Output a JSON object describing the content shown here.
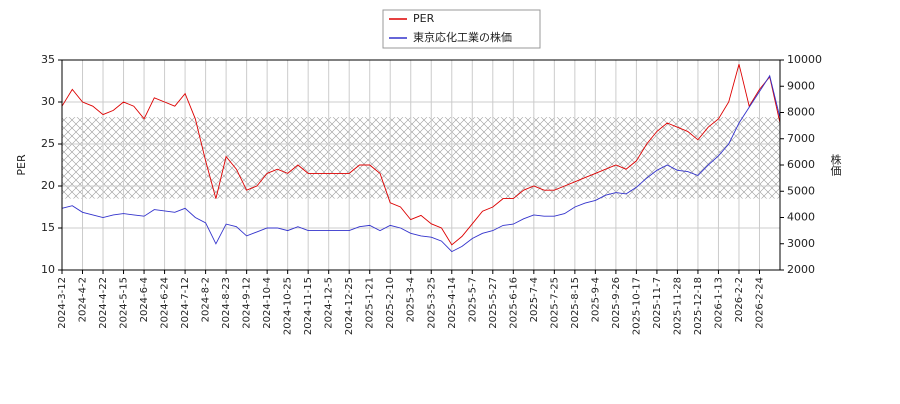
{
  "chart_data": {
    "type": "line",
    "y_label": "PER",
    "y2_label": "株価",
    "categories": [
      "2024-3-12",
      null,
      "2024-4-2",
      null,
      "2024-4-22",
      null,
      "2024-5-15",
      null,
      "2024-6-4",
      null,
      "2024-6-24",
      null,
      "2024-7-12",
      null,
      "2024-8-2",
      null,
      "2024-8-23",
      null,
      "2024-9-12",
      null,
      "2024-10-4",
      null,
      "2024-10-25",
      null,
      "2024-11-15",
      null,
      "2024-12-5",
      null,
      "2024-12-25",
      null,
      "2025-1-21",
      null,
      "2025-2-10",
      null,
      "2025-3-4",
      null,
      "2025-3-25",
      null,
      "2025-4-14",
      null,
      "2025-5-7",
      null,
      "2025-5-27",
      null,
      "2025-6-16",
      null,
      "2025-7-4",
      null,
      "2025-7-25",
      null,
      "2025-8-15",
      null,
      "2025-9-4",
      null,
      "2025-9-26",
      null,
      "2025-10-17",
      null,
      "2025-11-7",
      null,
      "2025-11-28",
      null,
      "2025-12-18",
      null,
      "2026-1-13",
      null,
      "2026-2-2",
      null,
      "2026-2-24",
      null,
      null
    ],
    "series": [
      {
        "name": "PER",
        "color": "#dd0000",
        "axis": "y",
        "values": [
          29.5,
          31.5,
          30,
          29.5,
          28.5,
          29,
          30,
          29.5,
          28,
          30.5,
          30,
          29.5,
          31,
          28,
          23,
          18.5,
          23.5,
          22,
          19.5,
          20,
          21.5,
          22,
          21.5,
          22.5,
          21.5,
          21.5,
          21.5,
          21.5,
          21.5,
          22.5,
          22.5,
          21.5,
          18,
          17.5,
          16,
          16.5,
          15.5,
          15,
          13,
          14,
          15.5,
          17,
          17.5,
          18.5,
          18.5,
          19.5,
          20,
          19.5,
          19.5,
          20,
          20.5,
          21,
          21.5,
          22,
          22.5,
          22,
          23,
          25,
          26.5,
          27.5,
          27,
          26.5,
          25.5,
          27,
          28,
          30,
          34.5,
          29.5,
          31.5,
          33,
          27.5
        ]
      },
      {
        "name": "東京応化工業の株価",
        "color": "#3333cc",
        "axis": "y2",
        "values": [
          4350,
          4450,
          4200,
          4100,
          4000,
          4100,
          4150,
          4100,
          4050,
          4300,
          4250,
          4200,
          4350,
          4000,
          3800,
          3000,
          3750,
          3650,
          3300,
          3450,
          3600,
          3600,
          3500,
          3650,
          3500,
          3500,
          3500,
          3500,
          3500,
          3650,
          3700,
          3500,
          3700,
          3600,
          3400,
          3300,
          3250,
          3100,
          2700,
          2900,
          3200,
          3400,
          3500,
          3700,
          3750,
          3950,
          4100,
          4050,
          4050,
          4150,
          4400,
          4550,
          4650,
          4850,
          4950,
          4900,
          5150,
          5500,
          5800,
          6000,
          5800,
          5750,
          5600,
          6000,
          6350,
          6800,
          7600,
          8200,
          8800,
          9400,
          7800
        ]
      }
    ],
    "ylim": [
      10,
      35
    ],
    "yticks": [
      10,
      15,
      20,
      25,
      30,
      35
    ],
    "y2lim": [
      2000,
      10000
    ],
    "y2ticks": [
      2000,
      3000,
      4000,
      5000,
      6000,
      7000,
      8000,
      9000,
      10000
    ],
    "hatch_band": [
      18.5,
      28.2
    ],
    "grid": true,
    "legend": "top"
  }
}
